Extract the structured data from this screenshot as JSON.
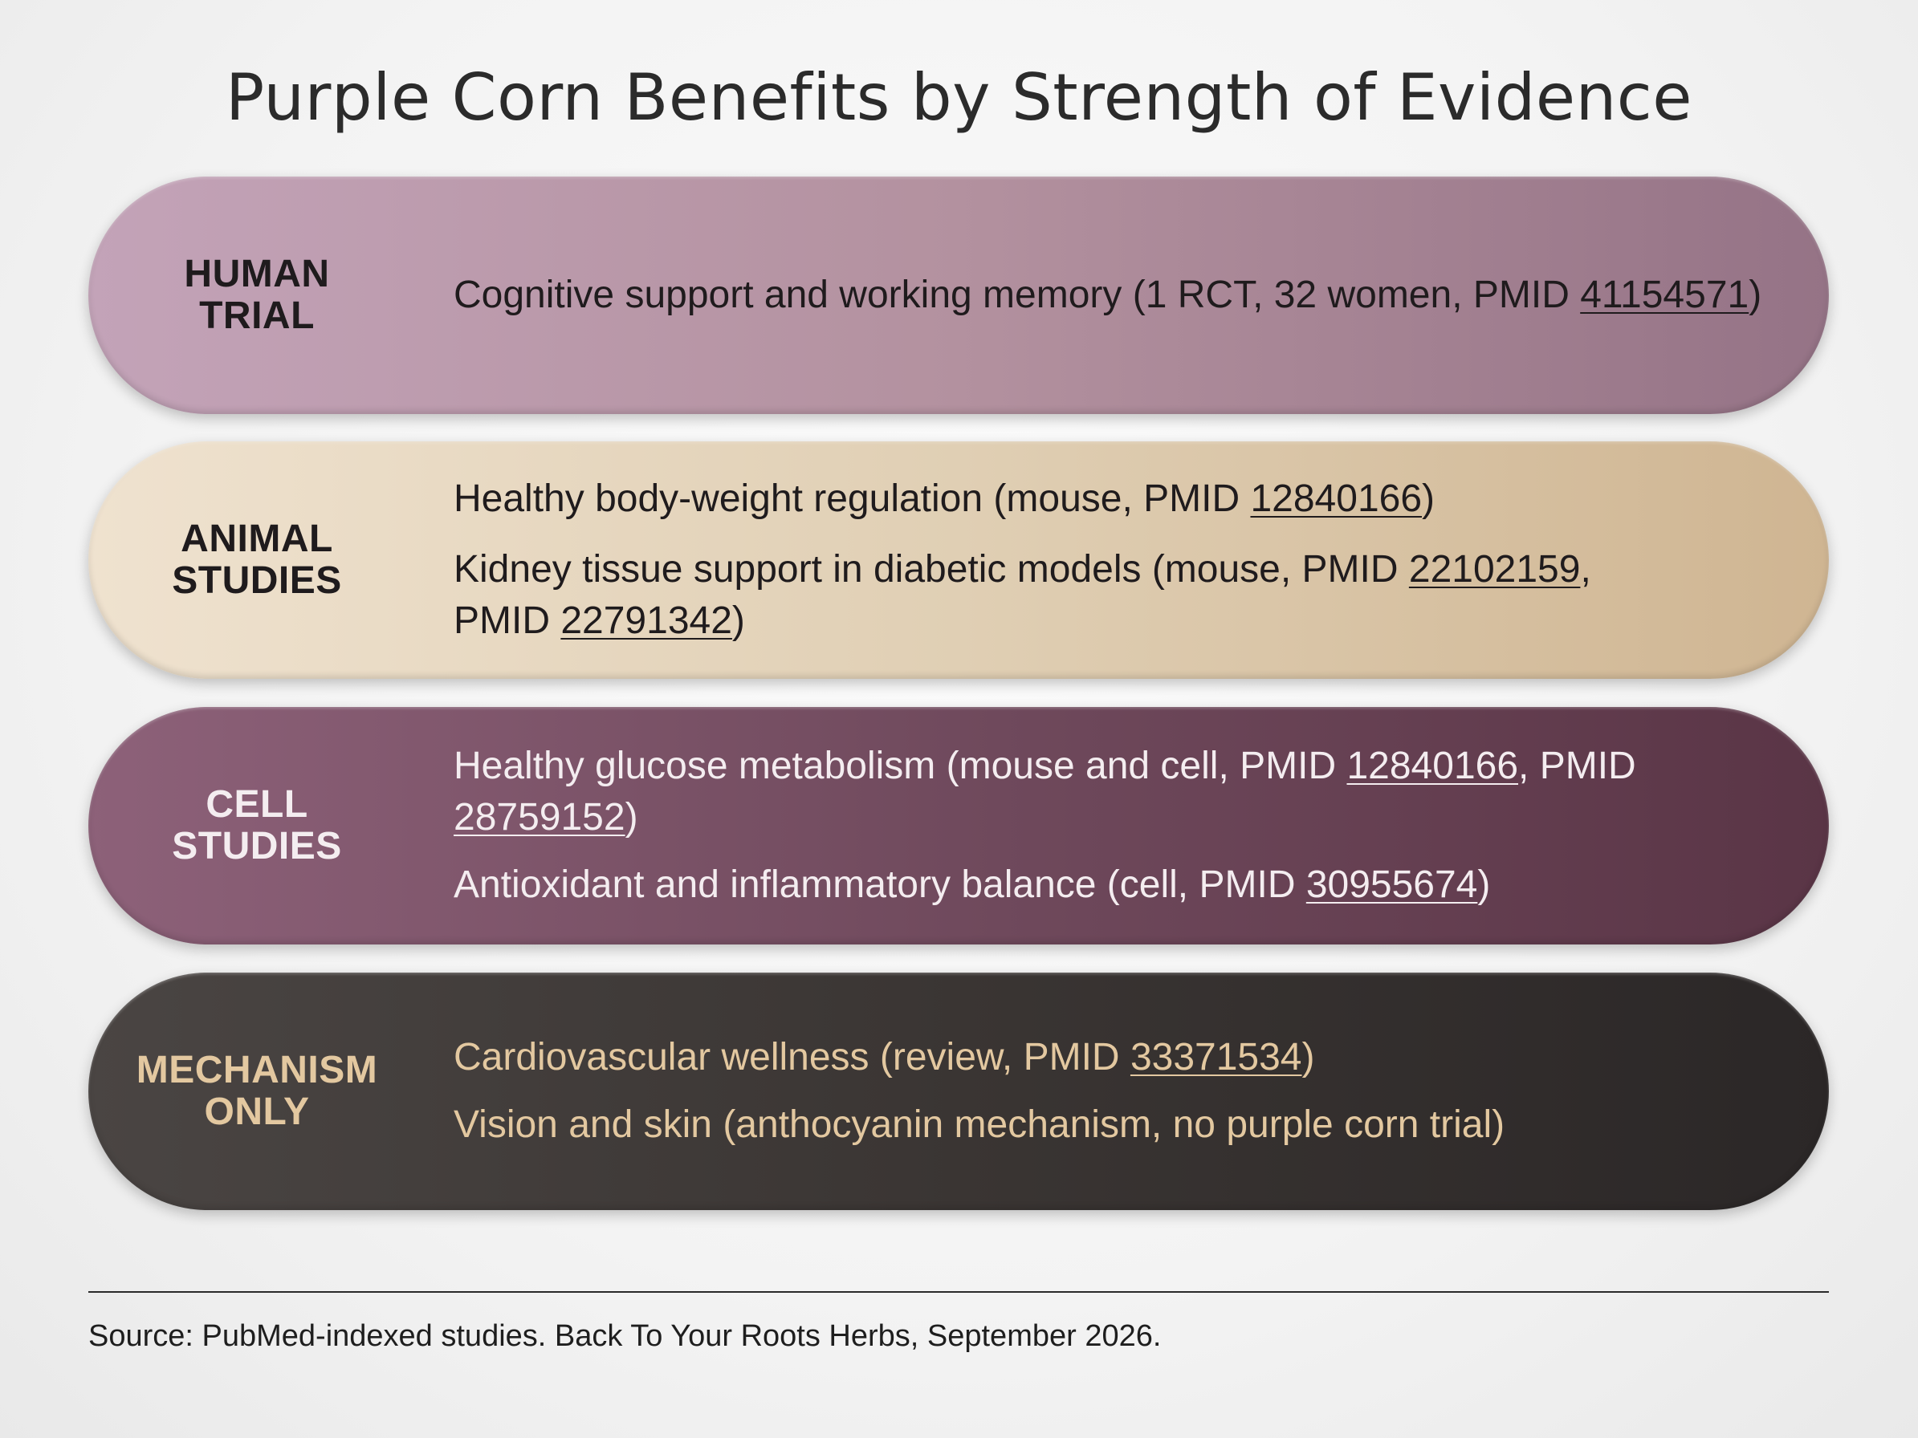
{
  "title": "Purple Corn Benefits by Strength of Evidence",
  "tiers": [
    {
      "label_lines": [
        "HUMAN",
        "TRIAL"
      ],
      "items": [
        {
          "pre": "Cognitive support and working memory (1 RCT, 32 women, PMID ",
          "pmid": "41154571",
          "post": ")"
        }
      ]
    },
    {
      "label_lines": [
        "ANIMAL",
        "STUDIES"
      ],
      "items": [
        {
          "pre": "Healthy body-weight regulation (mouse, PMID ",
          "pmid": "12840166",
          "post": ")"
        },
        {
          "pre": "Kidney tissue support in diabetic models (mouse, PMID ",
          "pmid": "22102159",
          "mid": ",",
          "pre2": "PMID ",
          "pmid2": "22791342",
          "post": ")"
        }
      ]
    },
    {
      "label_lines": [
        "CELL",
        "STUDIES"
      ],
      "items": [
        {
          "pre": "Healthy glucose metabolism (mouse and cell, PMID ",
          "pmid": "12840166",
          "mid": ", PMID ",
          "pmid2": "28759152",
          "post": ")"
        },
        {
          "pre": "Antioxidant and inflammatory balance (cell, PMID ",
          "pmid": "30955674",
          "post": ")"
        }
      ]
    },
    {
      "label_lines": [
        "MECHANISM",
        "ONLY"
      ],
      "items": [
        {
          "pre": "Cardiovascular wellness (review, PMID ",
          "pmid": "33371534",
          "post": ")"
        },
        {
          "text": "Vision and skin (anthocyanin mechanism, no purple corn trial)"
        }
      ]
    }
  ],
  "source": "Source: PubMed-indexed studies. Back To Your Roots Herbs, September 2026.",
  "colors": {
    "human": "#b3919f",
    "animal": "#e0cfb4",
    "cell": "#704a5d",
    "mechanism": "#3a3533",
    "mechanism_text": "#e3c8a0"
  }
}
